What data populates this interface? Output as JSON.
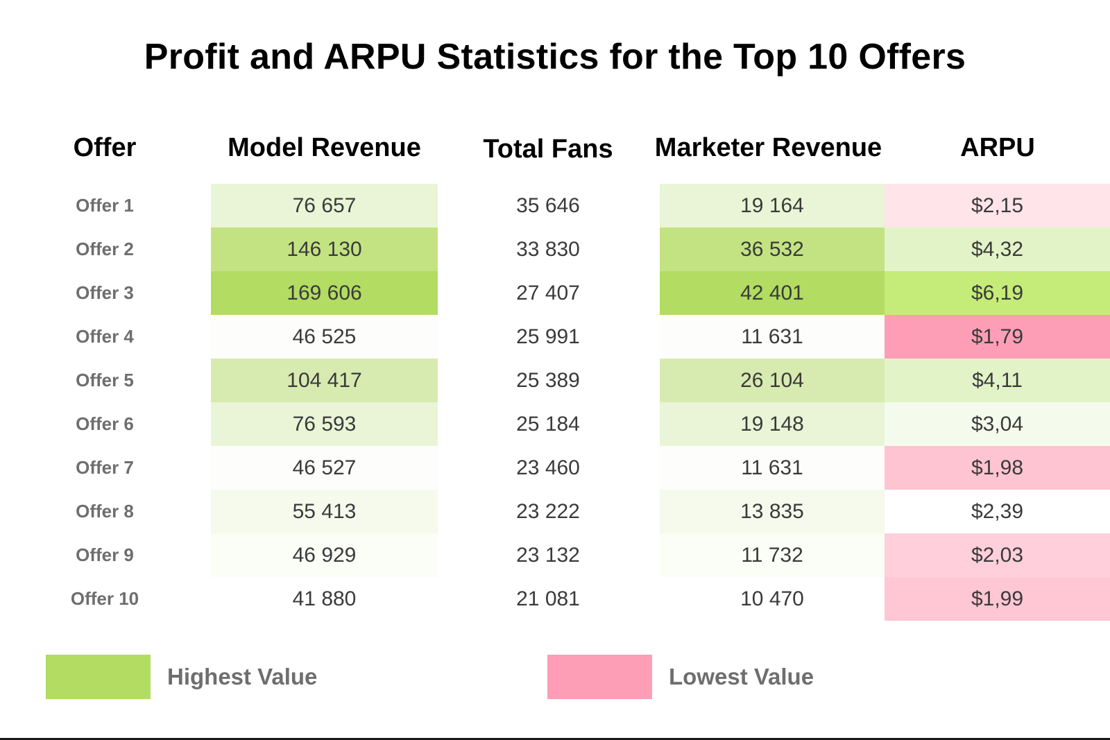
{
  "chart_data": {
    "type": "table",
    "title": "Profit and ARPU Statistics for the Top 10 Offers",
    "columns": [
      "Offer",
      "Model Revenue",
      "Total Fans",
      "Marketer Revenue",
      "ARPU"
    ],
    "rows": [
      {
        "offer": "Offer 1",
        "model_revenue": "76 657",
        "total_fans": "35 646",
        "marketer_revenue": "19 164",
        "arpu": "$2,15"
      },
      {
        "offer": "Offer 2",
        "model_revenue": "146 130",
        "total_fans": "33 830",
        "marketer_revenue": "36 532",
        "arpu": "$4,32"
      },
      {
        "offer": "Offer 3",
        "model_revenue": "169 606",
        "total_fans": "27 407",
        "marketer_revenue": "42 401",
        "arpu": "$6,19"
      },
      {
        "offer": "Offer 4",
        "model_revenue": "46 525",
        "total_fans": "25 991",
        "marketer_revenue": "11 631",
        "arpu": "$1,79"
      },
      {
        "offer": "Offer 5",
        "model_revenue": "104 417",
        "total_fans": "25 389",
        "marketer_revenue": "26 104",
        "arpu": "$4,11"
      },
      {
        "offer": "Offer 6",
        "model_revenue": "76 593",
        "total_fans": "25 184",
        "marketer_revenue": "19 148",
        "arpu": "$3,04"
      },
      {
        "offer": "Offer 7",
        "model_revenue": "46 527",
        "total_fans": "23 460",
        "marketer_revenue": "11 631",
        "arpu": "$1,98"
      },
      {
        "offer": "Offer 8",
        "model_revenue": "55 413",
        "total_fans": "23 222",
        "marketer_revenue": "13 835",
        "arpu": "$2,39"
      },
      {
        "offer": "Offer 9",
        "model_revenue": "46 929",
        "total_fans": "23 132",
        "marketer_revenue": "11 732",
        "arpu": "$2,03"
      },
      {
        "offer": "Offer 10",
        "model_revenue": "41 880",
        "total_fans": "21 081",
        "marketer_revenue": "10 470",
        "arpu": "$1,99"
      }
    ],
    "cell_colors": {
      "model_revenue": [
        "#e9f5d6",
        "#c3e383",
        "#b2dc62",
        "#fdfdfb",
        "#d7ebb1",
        "#e9f5d6",
        "#fdfdfb",
        "#f5faec",
        "#fbfdf7",
        "#ffffff"
      ],
      "marketer_revenue": [
        "#e9f5d6",
        "#c3e383",
        "#b2dc62",
        "#fdfdfb",
        "#d7ebb1",
        "#e9f5d6",
        "#fdfdfb",
        "#f5faec",
        "#fbfdf7",
        "#ffffff"
      ],
      "arpu": [
        "#ffe4ea",
        "#e2f4c7",
        "#c5ec78",
        "#fd9eb6",
        "#e2f4c7",
        "#f5fbec",
        "#ffc4d2",
        "#ffffff",
        "#ffcfdb",
        "#ffc6d4"
      ]
    },
    "legend": {
      "highest": {
        "label": "Highest Value",
        "color": "#b2dc62"
      },
      "lowest": {
        "label": "Lowest Value",
        "color": "#fd9eb6"
      }
    }
  }
}
